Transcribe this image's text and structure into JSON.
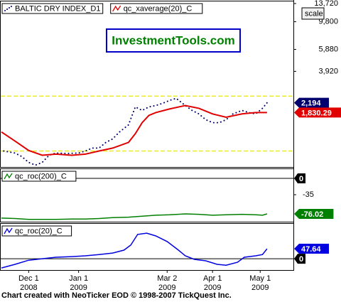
{
  "chart_data": [
    {
      "type": "line",
      "log_scale": true,
      "xlim": [
        0,
        128
      ],
      "ylim": [
        670,
        14450
      ],
      "yticks": [
        {
          "value": 13720,
          "label": "13,720"
        },
        {
          "value": 9800,
          "label": "9,800"
        },
        {
          "value": 5880,
          "label": "5,880"
        },
        {
          "value": 3920,
          "label": "3,920"
        }
      ],
      "hlines": [
        2480,
        900
      ],
      "hline_color": "#e8e800",
      "banner": "InvestmentTools.com",
      "scale_button": "scale",
      "series": [
        {
          "name": "BALTIC DRY INDEX_D1",
          "color": "#00006e",
          "style": "dotted",
          "last_value_label": "2,194",
          "x": [
            1,
            6,
            9,
            12,
            15,
            18,
            21,
            24,
            29,
            34,
            37,
            40,
            43,
            46,
            49,
            52,
            56,
            59,
            62,
            65,
            68,
            71,
            74,
            77,
            81,
            84,
            87,
            90,
            93,
            96,
            99,
            102,
            106,
            109,
            112,
            115,
            117
          ],
          "values": [
            900,
            866,
            812,
            730,
            693,
            730,
            832,
            866,
            860,
            866,
            900,
            950,
            950,
            1055,
            1125,
            1280,
            1460,
            2035,
            1905,
            2035,
            2085,
            2172,
            2290,
            2380,
            2085,
            1905,
            1785,
            1605,
            1520,
            1520,
            1605,
            1785,
            1905,
            1830,
            1785,
            1980,
            2194
          ]
        },
        {
          "name": "qc_xaverage(20)_C",
          "color": "#e00000",
          "style": "solid",
          "last_value_label": "1,830.29",
          "x": [
            0,
            6,
            12,
            18,
            24,
            31,
            37,
            43,
            49,
            56,
            59,
            62,
            65,
            68,
            74,
            81,
            87,
            93,
            99,
            106,
            112,
            117
          ],
          "values": [
            1280,
            1080,
            910,
            832,
            850,
            832,
            850,
            900,
            950,
            1055,
            1240,
            1520,
            1740,
            1830,
            1955,
            2085,
            1980,
            1785,
            1680,
            1785,
            1830,
            1830.29
          ]
        }
      ]
    },
    {
      "type": "line",
      "xlim": [
        0,
        128
      ],
      "ylim": [
        -92.8,
        21.3
      ],
      "yticks": [
        0,
        -35
      ],
      "zero_line": true,
      "series": [
        {
          "name": "qc_roc(200)_C",
          "color": "#008000",
          "style": "solid",
          "x": [
            0,
            6,
            12,
            18,
            24,
            31,
            37,
            43,
            49,
            56,
            62,
            68,
            74,
            81,
            87,
            93,
            99,
            106,
            112,
            115,
            117
          ],
          "values": [
            -85,
            -86,
            -88,
            -88,
            -88,
            -87,
            -87,
            -86,
            -84,
            -83,
            -81,
            -79,
            -78,
            -76,
            -77,
            -79,
            -78,
            -77,
            -78,
            -79,
            -76.02
          ]
        }
      ]
    },
    {
      "type": "line",
      "xlim": [
        0,
        128
      ],
      "ylim": [
        -54,
        170
      ],
      "yticks": [
        0
      ],
      "zero_line": true,
      "xticks": [
        {
          "value": 12,
          "label": "Dec 1",
          "sublabel": "2008"
        },
        {
          "value": 34,
          "label": "Jan 1",
          "sublabel": "2009"
        },
        {
          "value": 73,
          "label": "Mar 2",
          "sublabel": "2009"
        },
        {
          "value": 93,
          "label": "Apr 1",
          "sublabel": "2009"
        },
        {
          "value": 114,
          "label": "May 1",
          "sublabel": "2009"
        }
      ],
      "series": [
        {
          "name": "qc_roc(20)_C",
          "color": "#0000e0",
          "style": "solid",
          "x": [
            0,
            6,
            12,
            18,
            24,
            31,
            37,
            43,
            49,
            54,
            57,
            60,
            64,
            68,
            73,
            78,
            81,
            85,
            90,
            95,
            99,
            104,
            107,
            112,
            115,
            117
          ],
          "values": [
            -44,
            -27,
            -7,
            0,
            7,
            10,
            14,
            20,
            27,
            41,
            65,
            116,
            122,
            109,
            82,
            41,
            14,
            -3,
            -10,
            -27,
            -31,
            -17,
            7,
            14,
            20,
            47.64
          ]
        }
      ]
    }
  ],
  "footer": "Chart created with NeoTicker EOD © 1998-2007 TickQuest Inc."
}
